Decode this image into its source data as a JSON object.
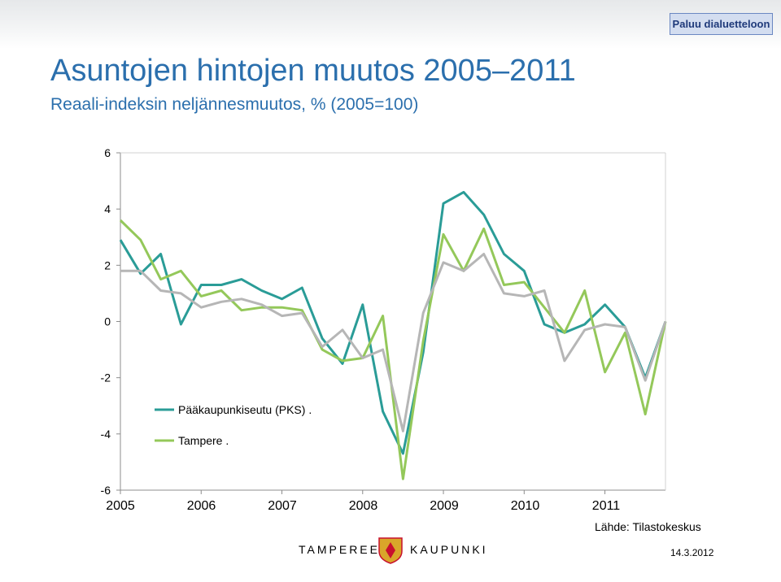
{
  "header": {
    "back_button": "Paluu dialuetteloon",
    "title": "Asuntojen hintojen muutos 2005–2011",
    "subtitle": "Reaali-indeksin neljännesmuutos, % (2005=100)"
  },
  "footer": {
    "source": "Lähde: Tilastokeskus",
    "date": "14.3.2012",
    "logo_left": "TAMPEREEN",
    "logo_right": "KAUPUNKI"
  },
  "colors": {
    "title": "#2b6fad",
    "series": [
      "#2a9c97",
      "#94c85a",
      "#b6b6b6"
    ],
    "logo_crest": "#d9a62a",
    "logo_crest_inner": "#c8102e"
  },
  "chart_data": {
    "type": "line",
    "x_labels": [
      "2005",
      "2006",
      "2007",
      "2008",
      "2009",
      "2010",
      "2011"
    ],
    "ylim": [
      -6,
      6
    ],
    "yticks": [
      "6",
      "4",
      "2",
      "0",
      "-2",
      "-4",
      "-6"
    ],
    "grid": false,
    "legend_position": "bottom-left",
    "series": [
      {
        "name": "Pääkaupunkiseutu (PKS) .",
        "color": "#2a9c97",
        "values": [
          2.9,
          1.7,
          2.4,
          -0.1,
          1.3,
          1.3,
          1.5,
          1.1,
          0.8,
          1.2,
          -0.6,
          -1.5,
          0.6,
          -3.2,
          -4.7,
          -1.1,
          4.2,
          4.6,
          3.8,
          2.4,
          1.8,
          -0.1,
          -0.4,
          -0.1,
          0.6,
          -0.2,
          -2.0,
          0.0
        ]
      },
      {
        "name": "Tampere .",
        "color": "#94c85a",
        "values": [
          3.6,
          2.9,
          1.5,
          1.8,
          0.9,
          1.1,
          0.4,
          0.5,
          0.5,
          0.4,
          -1.0,
          -1.4,
          -1.3,
          0.2,
          -5.6,
          -0.7,
          3.1,
          1.8,
          3.3,
          1.3,
          1.4,
          0.5,
          -0.4,
          1.1,
          -1.8,
          -0.4,
          -3.3,
          0.0
        ]
      },
      {
        "color": "#b6b6b6",
        "values": [
          1.8,
          1.8,
          1.1,
          1.0,
          0.5,
          0.7,
          0.8,
          0.6,
          0.2,
          0.3,
          -0.9,
          -0.3,
          -1.3,
          -1.0,
          -3.9,
          0.3,
          2.1,
          1.8,
          2.4,
          1.0,
          0.9,
          1.1,
          -1.4,
          -0.3,
          -0.1,
          -0.2,
          -2.1,
          0.0
        ]
      }
    ]
  }
}
